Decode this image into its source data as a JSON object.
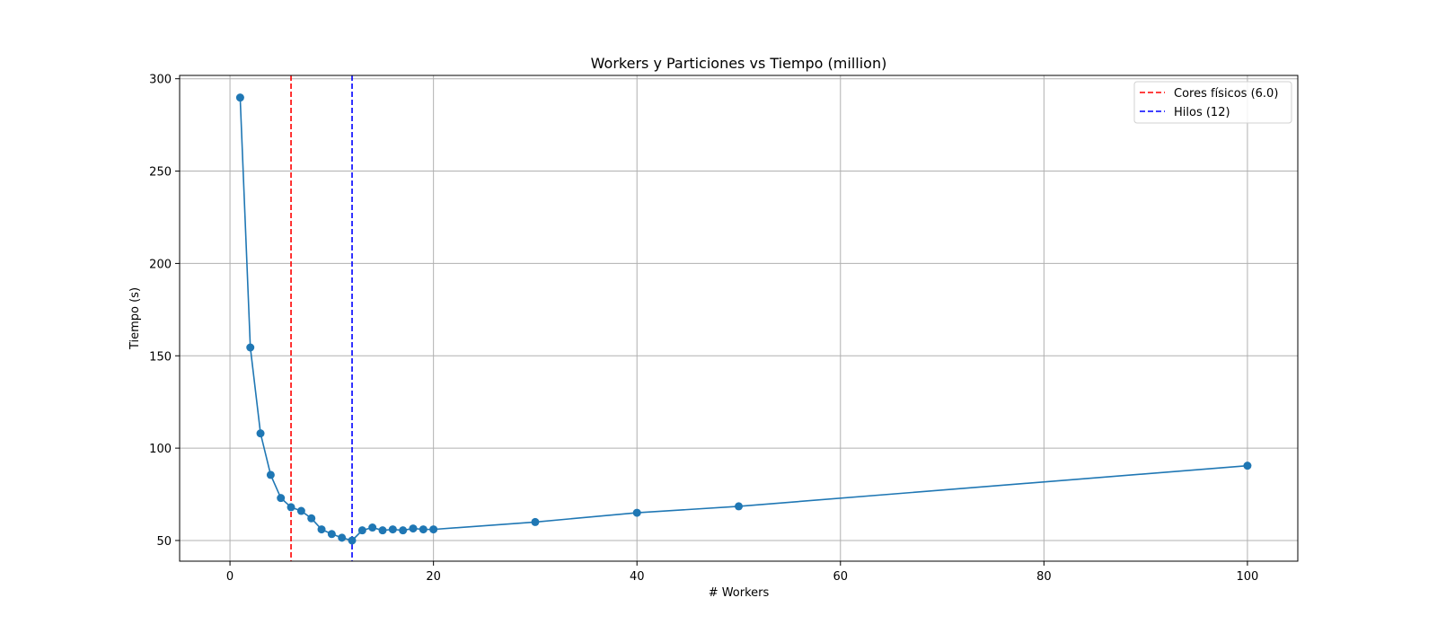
{
  "chart_data": {
    "type": "line",
    "title": "Workers y Particiones vs Tiempo (million)",
    "xlabel": "# Workers",
    "ylabel": "Tiempo (s)",
    "xlim": [
      -4.95,
      104.95
    ],
    "ylim": [
      38.8,
      301.8
    ],
    "xticks": [
      0,
      20,
      40,
      60,
      80,
      100
    ],
    "yticks": [
      50,
      100,
      150,
      200,
      250,
      300
    ],
    "grid": true,
    "legend_position": "top-right",
    "series": [
      {
        "color": "#1f77b4",
        "marker": "circle",
        "x": [
          1,
          2,
          3,
          4,
          5,
          6,
          7,
          8,
          9,
          10,
          11,
          12,
          13,
          14,
          15,
          16,
          17,
          18,
          19,
          20,
          30,
          40,
          50,
          100
        ],
        "y": [
          289.8,
          154.5,
          108.0,
          85.5,
          73.0,
          68.0,
          66.0,
          62.0,
          56.0,
          53.5,
          51.5,
          50.0,
          55.5,
          57.0,
          55.5,
          56.0,
          55.5,
          56.5,
          56.0,
          56.0,
          60.0,
          65.0,
          68.5,
          90.5
        ]
      }
    ],
    "reference_lines": [
      {
        "x": 6.0,
        "color": "#ff0000",
        "style": "dashed",
        "label": "Cores físicos (6.0)"
      },
      {
        "x": 12,
        "color": "#0000ff",
        "style": "dashed",
        "label": "Hilos (12)"
      }
    ]
  }
}
